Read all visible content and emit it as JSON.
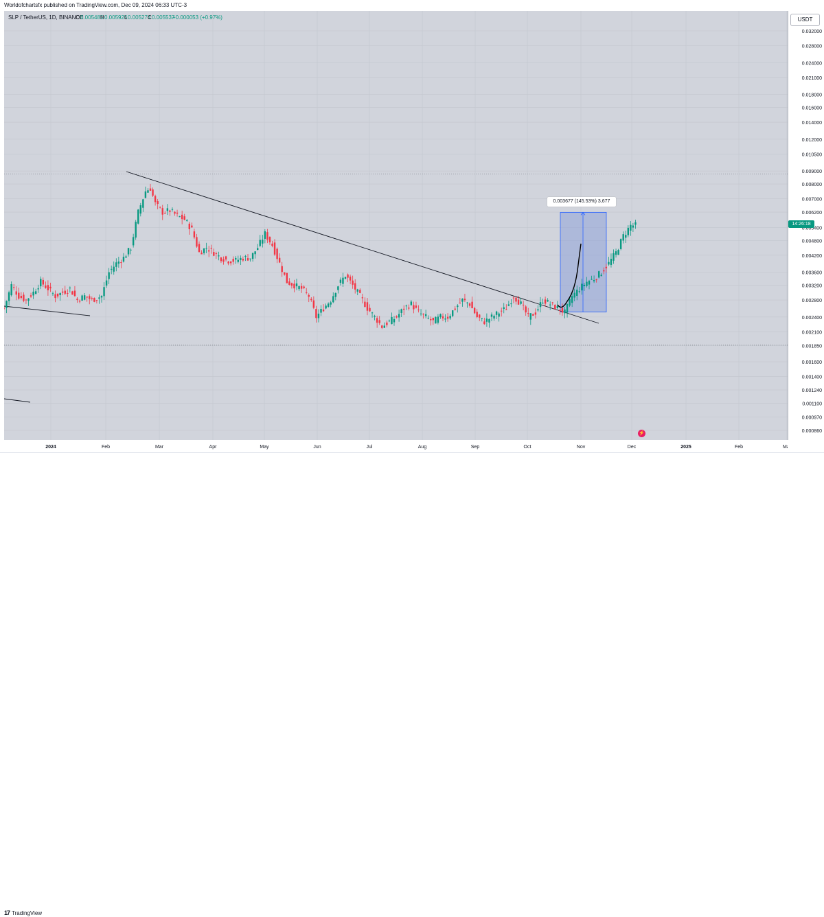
{
  "header": {
    "attribution": "Worldofchartsfx published on TradingView.com, Dec 09, 2024 06:33 UTC-3"
  },
  "chart_data": {
    "type": "candlestick",
    "legend": {
      "symbol": "SLP / TetherUS, 1D, BINANCE",
      "open_label": "O",
      "open": "0.005485",
      "high_label": "H",
      "high": "0.005926",
      "low_label": "L",
      "low": "0.005274",
      "close_label": "C",
      "close": "0.005537",
      "change": "+0.000053 (+0.97%)"
    },
    "currency": "USDT",
    "current_price_label": "14:26:18",
    "y_scale": "log",
    "y_ticks": [
      "0.032000",
      "0.028000",
      "0.024000",
      "0.021000",
      "0.018000",
      "0.016000",
      "0.014000",
      "0.012000",
      "0.010500",
      "0.009000",
      "0.008000",
      "0.007000",
      "0.006200",
      "0.005400",
      "0.004800",
      "0.004200",
      "0.003600",
      "0.003200",
      "0.002800",
      "0.002400",
      "0.002100",
      "0.001850",
      "0.001600",
      "0.001400",
      "0.001240",
      "0.001100",
      "0.000970",
      "0.000860"
    ],
    "x_ticks": [
      "2024",
      "Feb",
      "Mar",
      "Apr",
      "May",
      "Jun",
      "Jul",
      "Aug",
      "Sep",
      "Oct",
      "Nov",
      "Dec",
      "2025",
      "Feb",
      "Mar"
    ],
    "ylim": [
      0.00082,
      0.034
    ],
    "grid": true,
    "measurement_label": "0.003677 (145.53%) 3,677",
    "measurement_range": [
      0.00251,
      0.00619
    ],
    "horizontal_levels": [
      0.00875,
      0.00186
    ],
    "candles_close_path": [
      [
        0,
        0.0026
      ],
      [
        3,
        0.0032
      ],
      [
        6,
        0.0029
      ],
      [
        9,
        0.0028
      ],
      [
        12,
        0.003
      ],
      [
        15,
        0.0033
      ],
      [
        18,
        0.0031
      ],
      [
        21,
        0.0029
      ],
      [
        24,
        0.003
      ],
      [
        27,
        0.0031
      ],
      [
        30,
        0.0028
      ],
      [
        33,
        0.0029
      ],
      [
        36,
        0.0028
      ],
      [
        40,
        0.0029
      ],
      [
        43,
        0.0036
      ],
      [
        46,
        0.0039
      ],
      [
        49,
        0.0041
      ],
      [
        52,
        0.0045
      ],
      [
        55,
        0.0062
      ],
      [
        58,
        0.0075
      ],
      [
        60,
        0.0077
      ],
      [
        62,
        0.0067
      ],
      [
        65,
        0.0062
      ],
      [
        68,
        0.0063
      ],
      [
        71,
        0.006
      ],
      [
        74,
        0.0058
      ],
      [
        77,
        0.0053
      ],
      [
        80,
        0.0043
      ],
      [
        83,
        0.0045
      ],
      [
        86,
        0.0043
      ],
      [
        89,
        0.0041
      ],
      [
        92,
        0.004
      ],
      [
        95,
        0.004
      ],
      [
        98,
        0.0041
      ],
      [
        101,
        0.0041
      ],
      [
        104,
        0.0045
      ],
      [
        107,
        0.0051
      ],
      [
        110,
        0.0046
      ],
      [
        113,
        0.0039
      ],
      [
        116,
        0.0033
      ],
      [
        119,
        0.0032
      ],
      [
        122,
        0.0031
      ],
      [
        125,
        0.0029
      ],
      [
        128,
        0.0024
      ],
      [
        131,
        0.0026
      ],
      [
        134,
        0.0028
      ],
      [
        137,
        0.0032
      ],
      [
        140,
        0.0035
      ],
      [
        143,
        0.0032
      ],
      [
        146,
        0.0029
      ],
      [
        149,
        0.0026
      ],
      [
        152,
        0.0024
      ],
      [
        155,
        0.0022
      ],
      [
        158,
        0.0023
      ],
      [
        161,
        0.0024
      ],
      [
        164,
        0.0026
      ],
      [
        167,
        0.0027
      ],
      [
        170,
        0.0025
      ],
      [
        173,
        0.0024
      ],
      [
        176,
        0.0023
      ],
      [
        179,
        0.0024
      ],
      [
        182,
        0.0024
      ],
      [
        185,
        0.0026
      ],
      [
        188,
        0.0028
      ],
      [
        191,
        0.0027
      ],
      [
        194,
        0.0024
      ],
      [
        197,
        0.0023
      ],
      [
        200,
        0.0024
      ],
      [
        203,
        0.0025
      ],
      [
        206,
        0.0026
      ],
      [
        209,
        0.0029
      ],
      [
        212,
        0.0027
      ],
      [
        215,
        0.0024
      ],
      [
        218,
        0.0025
      ],
      [
        221,
        0.0028
      ],
      [
        224,
        0.0027
      ],
      [
        227,
        0.0026
      ],
      [
        230,
        0.0025
      ],
      [
        233,
        0.0029
      ],
      [
        236,
        0.0031
      ],
      [
        239,
        0.0033
      ],
      [
        242,
        0.0034
      ],
      [
        245,
        0.0036
      ],
      [
        248,
        0.0039
      ],
      [
        251,
        0.0043
      ],
      [
        254,
        0.005
      ],
      [
        257,
        0.0055
      ],
      [
        259,
        0.0055
      ]
    ],
    "first_candle_date": "2023-12-05"
  },
  "footer": {
    "logo_text": "TradingView"
  },
  "colors": {
    "up": "#089981",
    "down": "#f23645",
    "background": "#d1d4dc",
    "measure_fill": "#8fa3d9",
    "measure_line": "#2962ff",
    "trendline": "#131722"
  }
}
